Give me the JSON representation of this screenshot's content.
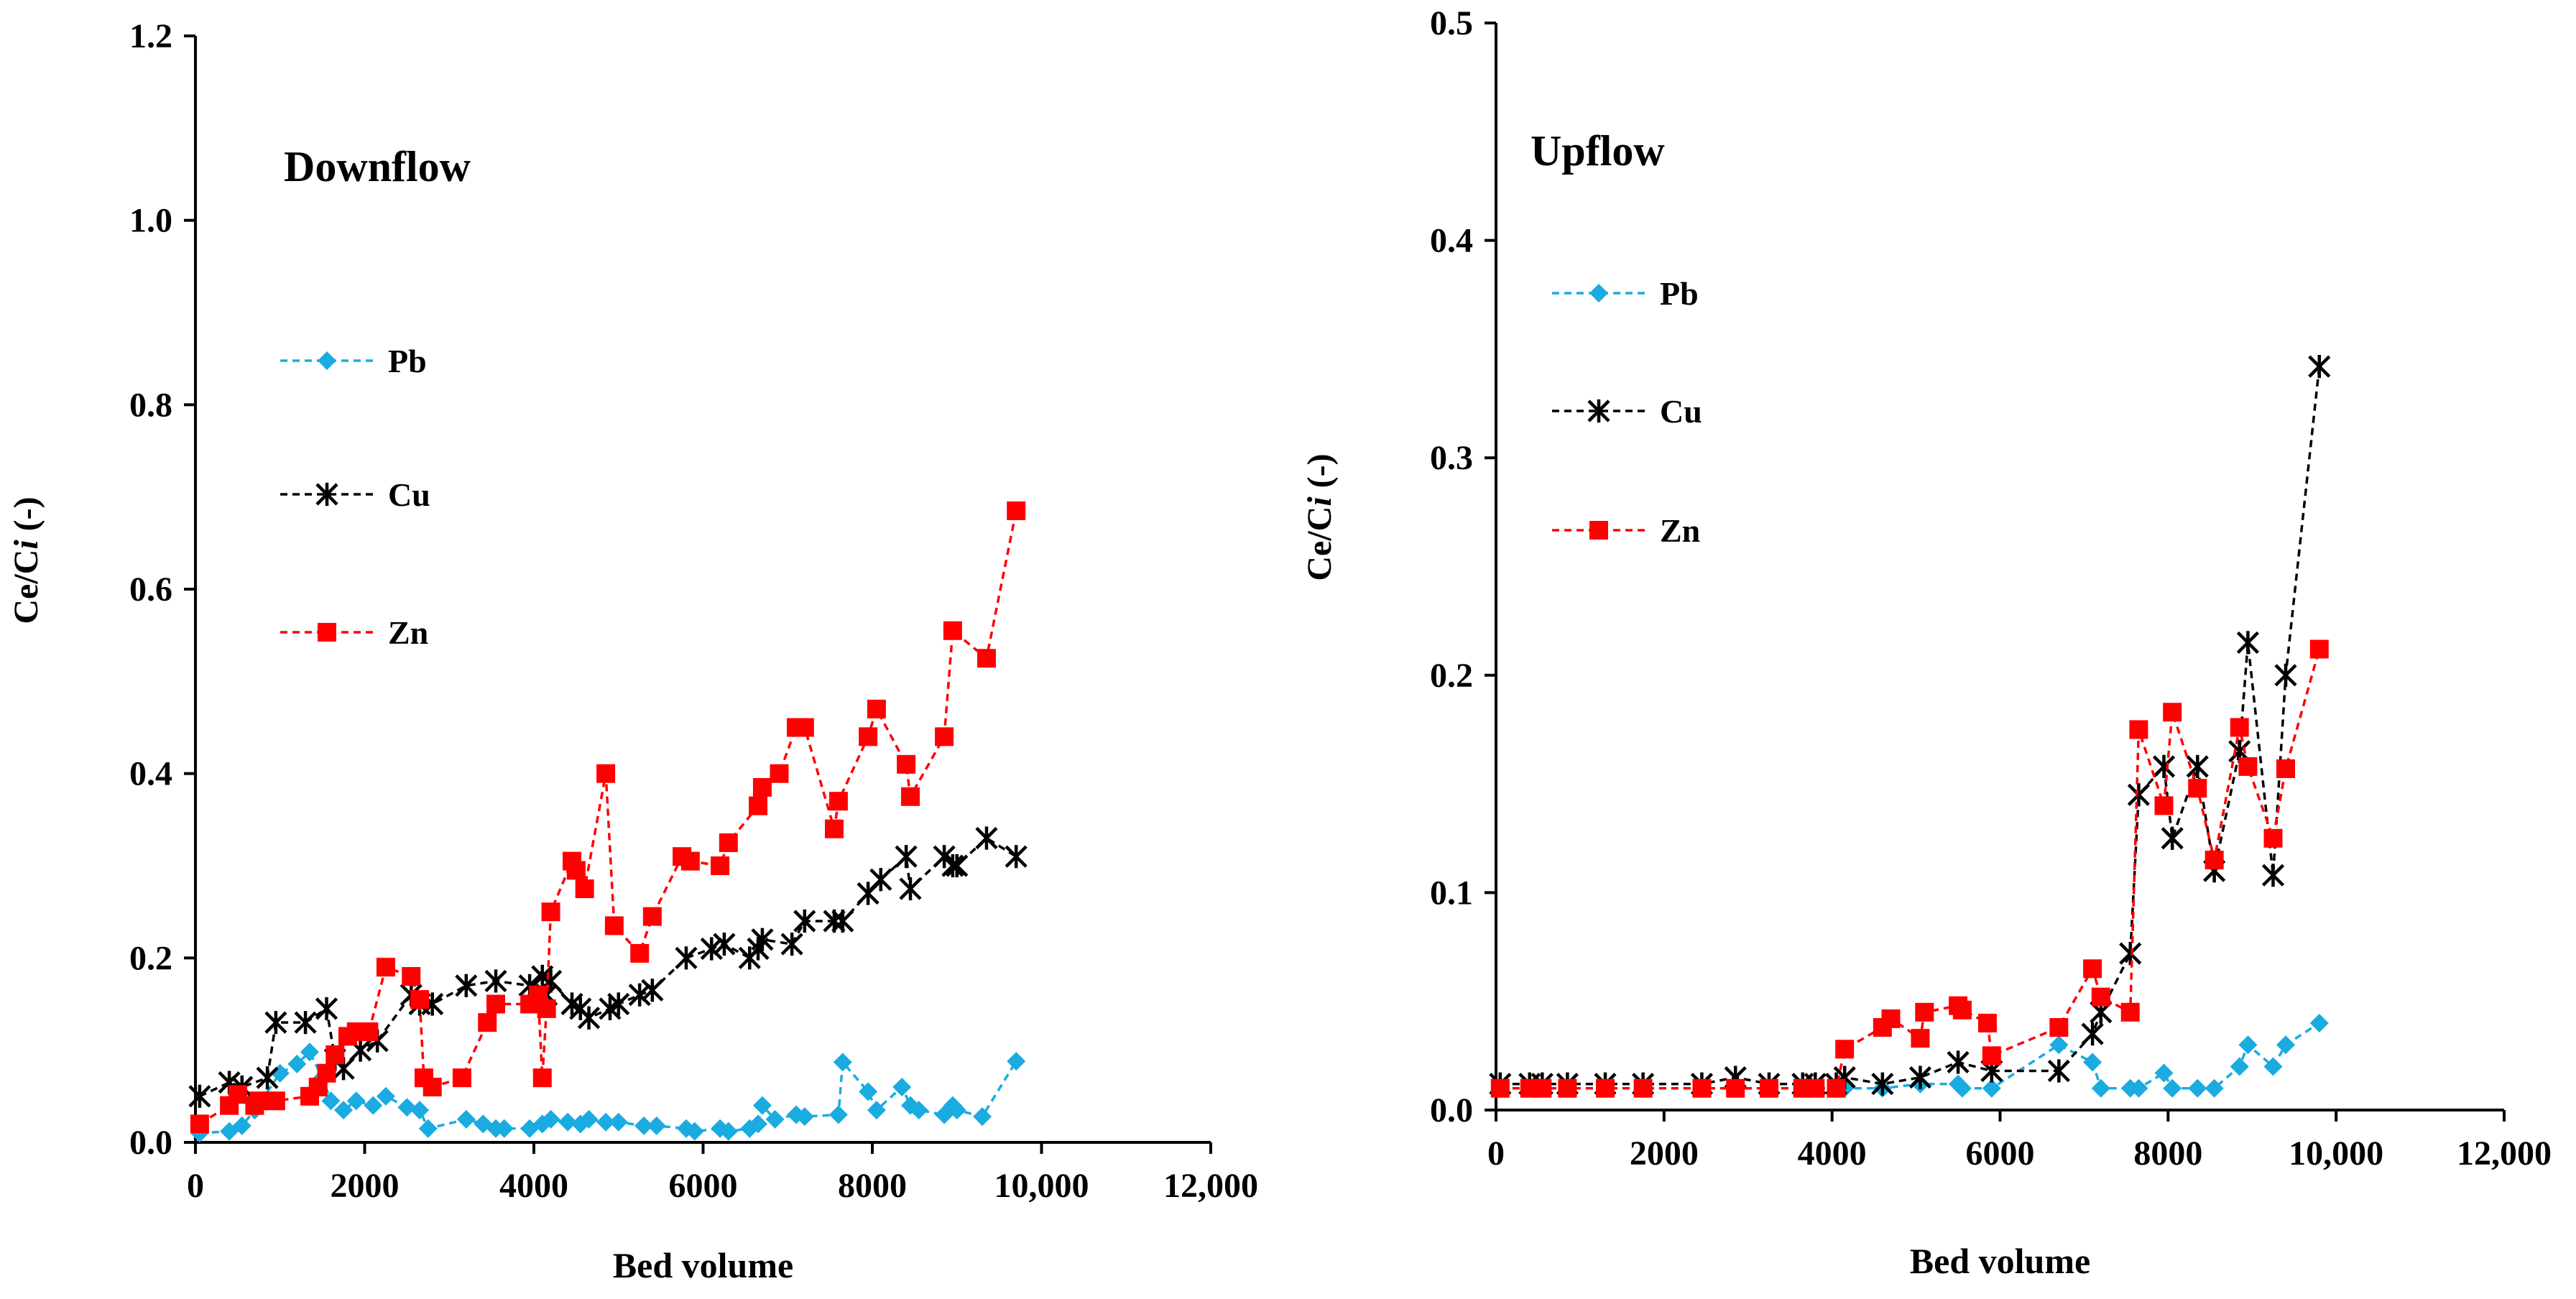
{
  "chart_data": [
    {
      "type": "line",
      "title": "Downflow",
      "xlabel": "Bed volume",
      "ylabel_main": "Ce/C",
      "ylabel_italic": "i",
      "ylabel_suffix": "(-)",
      "xlim": [
        0,
        12000
      ],
      "ylim": [
        0,
        1.2
      ],
      "xticks": [
        0,
        2000,
        4000,
        6000,
        8000,
        10000,
        12000
      ],
      "xtick_labels": [
        "0",
        "2000",
        "4000",
        "6000",
        "8000",
        "10,000",
        "12,000"
      ],
      "yticks": [
        0,
        0.2,
        0.4,
        0.6,
        0.8,
        1.0,
        1.2
      ],
      "ytick_labels": [
        "0.0",
        "0.2",
        "0.4",
        "0.6",
        "0.8",
        "1.0",
        "1.2"
      ],
      "legend_position": "upper-left",
      "series": [
        {
          "name": "Pb",
          "color": "#1AABE0",
          "marker": "diamond",
          "x": [
            50,
            400,
            550,
            700,
            1000,
            1200,
            1350,
            1500,
            1600,
            1750,
            1900,
            2100,
            2250,
            2500,
            2650,
            2750,
            3200,
            3400,
            3550,
            3650,
            3950,
            4100,
            4200,
            4400,
            4550,
            4650,
            4850,
            5000,
            5300,
            5450,
            5800,
            5900,
            6200,
            6300,
            6550,
            6650,
            6700,
            6850,
            7100,
            7200,
            7600,
            7650,
            7950,
            8050,
            8350,
            8450,
            8550,
            8850,
            8950,
            9000,
            9300,
            9700
          ],
          "y": [
            0.01,
            0.012,
            0.018,
            0.035,
            0.075,
            0.085,
            0.098,
            0.07,
            0.045,
            0.035,
            0.045,
            0.04,
            0.05,
            0.038,
            0.035,
            0.015,
            0.025,
            0.02,
            0.015,
            0.015,
            0.015,
            0.02,
            0.025,
            0.022,
            0.02,
            0.025,
            0.022,
            0.022,
            0.018,
            0.018,
            0.015,
            0.012,
            0.015,
            0.012,
            0.015,
            0.02,
            0.04,
            0.025,
            0.03,
            0.028,
            0.03,
            0.087,
            0.055,
            0.035,
            0.06,
            0.04,
            0.035,
            0.03,
            0.04,
            0.035,
            0.028,
            0.088
          ]
        },
        {
          "name": "Cu",
          "color": "#000000",
          "marker": "asterisk",
          "x": [
            50,
            400,
            550,
            850,
            950,
            1300,
            1550,
            1650,
            1750,
            1950,
            2150,
            2550,
            2650,
            2800,
            3200,
            3550,
            3950,
            4100,
            4150,
            4200,
            4450,
            4550,
            4650,
            4900,
            5000,
            5250,
            5400,
            5800,
            6100,
            6250,
            6550,
            6650,
            6700,
            7050,
            7200,
            7550,
            7650,
            7950,
            8100,
            8400,
            8450,
            8850,
            8950,
            9000,
            9350,
            9700
          ],
          "y": [
            0.05,
            0.065,
            0.06,
            0.07,
            0.13,
            0.13,
            0.145,
            0.09,
            0.08,
            0.1,
            0.11,
            0.16,
            0.15,
            0.15,
            0.17,
            0.175,
            0.17,
            0.18,
            0.16,
            0.175,
            0.15,
            0.145,
            0.135,
            0.145,
            0.15,
            0.16,
            0.165,
            0.2,
            0.21,
            0.215,
            0.2,
            0.21,
            0.22,
            0.215,
            0.24,
            0.24,
            0.24,
            0.27,
            0.285,
            0.31,
            0.275,
            0.31,
            0.3,
            0.3,
            0.33,
            0.31
          ]
        },
        {
          "name": "Zn",
          "color": "#FF0000",
          "marker": "square",
          "x": [
            50,
            400,
            500,
            700,
            750,
            950,
            1350,
            1450,
            1550,
            1650,
            1800,
            1900,
            2050,
            2250,
            2550,
            2650,
            2700,
            2800,
            3150,
            3450,
            3550,
            3950,
            4050,
            4100,
            4150,
            4200,
            4450,
            4500,
            4600,
            4850,
            4950,
            5250,
            5400,
            5750,
            5850,
            6200,
            6300,
            6650,
            6700,
            6900,
            7100,
            7200,
            7550,
            7600,
            7950,
            8050,
            8400,
            8450,
            8850,
            8950,
            9350,
            9700
          ],
          "y": [
            0.02,
            0.04,
            0.052,
            0.04,
            0.045,
            0.045,
            0.05,
            0.06,
            0.075,
            0.095,
            0.115,
            0.12,
            0.12,
            0.19,
            0.18,
            0.155,
            0.07,
            0.06,
            0.07,
            0.13,
            0.15,
            0.15,
            0.16,
            0.07,
            0.145,
            0.25,
            0.305,
            0.295,
            0.275,
            0.4,
            0.235,
            0.205,
            0.245,
            0.31,
            0.305,
            0.3,
            0.325,
            0.365,
            0.385,
            0.4,
            0.45,
            0.45,
            0.34,
            0.37,
            0.44,
            0.47,
            0.41,
            0.375,
            0.44,
            0.555,
            0.525,
            0.685
          ]
        }
      ]
    },
    {
      "type": "line",
      "title": "Upflow",
      "xlabel": "Bed volume",
      "ylabel_main": "Ce/C",
      "ylabel_italic": "i",
      "ylabel_suffix": "(-)",
      "xlim": [
        0,
        12000
      ],
      "ylim": [
        0,
        0.5
      ],
      "xticks": [
        0,
        2000,
        4000,
        6000,
        8000,
        10000,
        12000
      ],
      "xtick_labels": [
        "0",
        "2000",
        "4000",
        "6000",
        "8000",
        "10,000",
        "12,000"
      ],
      "yticks": [
        0,
        0.1,
        0.2,
        0.3,
        0.4,
        0.5
      ],
      "ytick_labels": [
        "0.0",
        "0.1",
        "0.2",
        "0.3",
        "0.4",
        "0.5"
      ],
      "legend_position": "upper-left",
      "series": [
        {
          "name": "Pb",
          "color": "#1AABE0",
          "marker": "diamond",
          "x": [
            50,
            400,
            550,
            850,
            1300,
            1750,
            2450,
            2850,
            3250,
            3650,
            3800,
            4050,
            4150,
            4600,
            5050,
            5500,
            5550,
            5900,
            6700,
            7100,
            7200,
            7550,
            7650,
            7950,
            8050,
            8350,
            8550,
            8850,
            8950,
            9250,
            9400,
            9800
          ],
          "y": [
            0.01,
            0.01,
            0.01,
            0.01,
            0.01,
            0.01,
            0.01,
            0.01,
            0.01,
            0.01,
            0.01,
            0.01,
            0.01,
            0.01,
            0.012,
            0.012,
            0.01,
            0.01,
            0.03,
            0.022,
            0.01,
            0.01,
            0.01,
            0.017,
            0.01,
            0.01,
            0.01,
            0.02,
            0.03,
            0.02,
            0.03,
            0.04
          ]
        },
        {
          "name": "Cu",
          "color": "#000000",
          "marker": "asterisk",
          "x": [
            50,
            400,
            550,
            850,
            1300,
            1750,
            2450,
            2850,
            3250,
            3650,
            3800,
            4050,
            4150,
            4600,
            5050,
            5500,
            5900,
            6700,
            7100,
            7200,
            7550,
            7650,
            7950,
            8050,
            8350,
            8550,
            8850,
            8950,
            9250,
            9400,
            9800
          ],
          "y": [
            0.012,
            0.012,
            0.012,
            0.012,
            0.012,
            0.012,
            0.012,
            0.015,
            0.012,
            0.012,
            0.012,
            0.012,
            0.015,
            0.012,
            0.015,
            0.022,
            0.018,
            0.018,
            0.035,
            0.045,
            0.072,
            0.145,
            0.158,
            0.125,
            0.158,
            0.11,
            0.165,
            0.215,
            0.108,
            0.2,
            0.342
          ]
        },
        {
          "name": "Zn",
          "color": "#FF0000",
          "marker": "square",
          "x": [
            50,
            400,
            550,
            850,
            1300,
            1750,
            2450,
            2850,
            3250,
            3650,
            3800,
            4050,
            4150,
            4600,
            4700,
            5050,
            5100,
            5500,
            5550,
            5850,
            5900,
            6700,
            7100,
            7200,
            7550,
            7650,
            7950,
            8050,
            8350,
            8550,
            8850,
            8950,
            9250,
            9400,
            9800
          ],
          "y": [
            0.01,
            0.01,
            0.01,
            0.01,
            0.01,
            0.01,
            0.01,
            0.01,
            0.01,
            0.01,
            0.01,
            0.01,
            0.028,
            0.038,
            0.042,
            0.033,
            0.045,
            0.048,
            0.046,
            0.04,
            0.025,
            0.038,
            0.065,
            0.052,
            0.045,
            0.175,
            0.14,
            0.183,
            0.148,
            0.115,
            0.176,
            0.158,
            0.125,
            0.157,
            0.212
          ]
        }
      ]
    }
  ]
}
